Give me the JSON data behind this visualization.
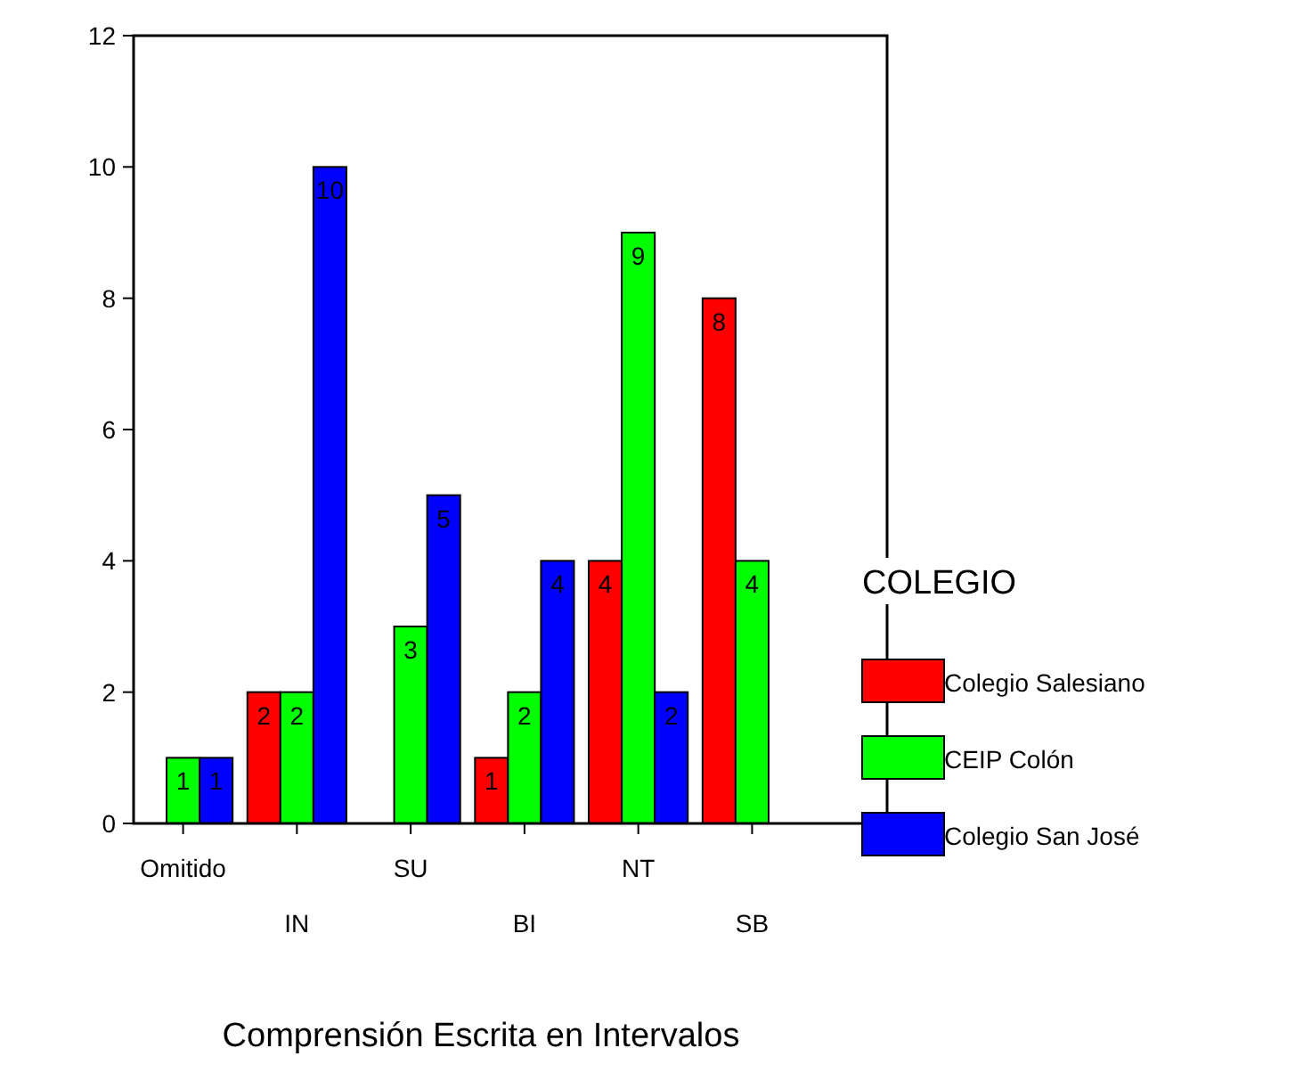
{
  "chart_data": {
    "type": "bar",
    "xlabel": "Comprensión Escrita en Intervalos",
    "legend_title": "COLEGIO",
    "legend": "right",
    "data_labels": true,
    "categories": [
      "Omitido",
      "IN",
      "SU",
      "BI",
      "NT",
      "SB"
    ],
    "series": [
      {
        "name": "Colegio Salesiano",
        "color": "#ff0000",
        "values": [
          null,
          2,
          null,
          1,
          4,
          8
        ]
      },
      {
        "name": "CEIP Colón",
        "color": "#00ff00",
        "values": [
          1,
          2,
          3,
          2,
          9,
          4
        ]
      },
      {
        "name": "Colegio San José",
        "color": "#0000ff",
        "values": [
          1,
          10,
          5,
          4,
          2,
          null
        ]
      }
    ],
    "ylim": [
      0,
      12
    ],
    "yticks": [
      0,
      2,
      4,
      6,
      8,
      10,
      12
    ],
    "grid": false
  }
}
